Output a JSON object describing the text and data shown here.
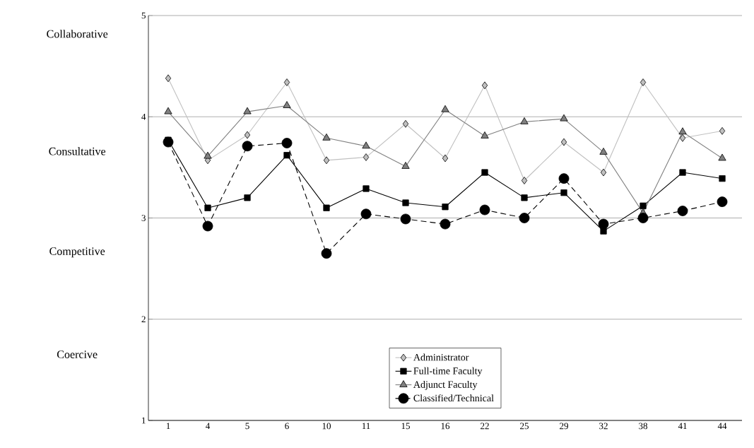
{
  "chart_data": {
    "type": "line",
    "categories": [
      "1",
      "4",
      "5",
      "6",
      "10",
      "11",
      "15",
      "16",
      "22",
      "25",
      "29",
      "32",
      "38",
      "41",
      "44"
    ],
    "series": [
      {
        "name": "Administrator",
        "color": "#c0c0c0",
        "marker": "diamond",
        "line_style": "solid",
        "values": [
          4.38,
          3.57,
          3.82,
          4.34,
          3.57,
          3.6,
          3.93,
          3.59,
          4.31,
          3.37,
          3.75,
          3.45,
          4.34,
          3.79,
          3.86
        ]
      },
      {
        "name": "Full-time Faculty",
        "color": "#000000",
        "marker": "square",
        "line_style": "solid",
        "values": [
          3.77,
          3.1,
          3.2,
          3.62,
          3.1,
          3.29,
          3.15,
          3.11,
          3.45,
          3.2,
          3.25,
          2.87,
          3.12,
          3.45,
          3.39
        ]
      },
      {
        "name": "Adjunct Faculty",
        "color": "#808080",
        "marker": "triangle",
        "line_style": "solid",
        "values": [
          4.05,
          3.61,
          4.05,
          4.11,
          3.79,
          3.71,
          3.51,
          4.07,
          3.81,
          3.95,
          3.98,
          3.65,
          3.05,
          3.85,
          3.59
        ]
      },
      {
        "name": "Classified/Technical",
        "color": "#000000",
        "marker": "circle",
        "line_style": "dashed",
        "values": [
          3.75,
          2.92,
          3.71,
          3.74,
          2.65,
          3.04,
          2.99,
          2.94,
          3.08,
          3.0,
          3.39,
          2.94,
          3.0,
          3.07,
          3.16
        ]
      }
    ],
    "ylim": [
      1,
      5
    ],
    "yticks": [
      1,
      2,
      3,
      4,
      5
    ],
    "grid": "y",
    "legend": "bottom",
    "annotations": [
      "Collaborative",
      "Consultative",
      "Competitive",
      "Coercive"
    ]
  }
}
